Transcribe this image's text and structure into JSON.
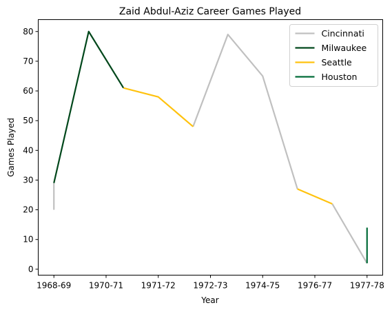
{
  "chart_data": {
    "type": "line",
    "title": "Zaid Abdul-Aziz Career Games Played",
    "xlabel": "Year",
    "ylabel": "Games Played",
    "ylim": [
      -2,
      84
    ],
    "xlim": [
      -0.45,
      9.45
    ],
    "x_tick_labels": [
      "1968-69",
      "1970-71",
      "1971-72",
      "1972-73",
      "1974-75",
      "1976-77",
      "1977-78"
    ],
    "x_tick_positions": [
      0,
      1.5,
      3,
      4.5,
      6,
      7.5,
      9
    ],
    "y_ticks": [
      0,
      10,
      20,
      30,
      40,
      50,
      60,
      70,
      80
    ],
    "grid": false,
    "legend_position": "top-right",
    "series": [
      {
        "name": "Cincinnati",
        "color": "#c0c0c0",
        "segments": [
          [
            [
              0,
              20
            ],
            [
              0,
              29
            ]
          ],
          [
            [
              4,
              48
            ],
            [
              5,
              79
            ],
            [
              6,
              65
            ],
            [
              7,
              27
            ]
          ],
          [
            [
              8,
              22
            ],
            [
              9,
              2
            ]
          ]
        ]
      },
      {
        "name": "Milwaukee",
        "color": "#00471b",
        "segments": [
          [
            [
              0,
              29
            ],
            [
              1,
              80
            ],
            [
              2,
              61
            ]
          ]
        ]
      },
      {
        "name": "Seattle",
        "color": "#ffc20e",
        "segments": [
          [
            [
              2,
              61
            ],
            [
              3,
              58
            ],
            [
              4,
              48
            ]
          ],
          [
            [
              7,
              27
            ],
            [
              8,
              22
            ]
          ]
        ]
      },
      {
        "name": "Houston",
        "color": "#006b38",
        "segments": [
          [
            [
              9,
              2
            ],
            [
              9,
              14
            ]
          ]
        ]
      }
    ]
  }
}
